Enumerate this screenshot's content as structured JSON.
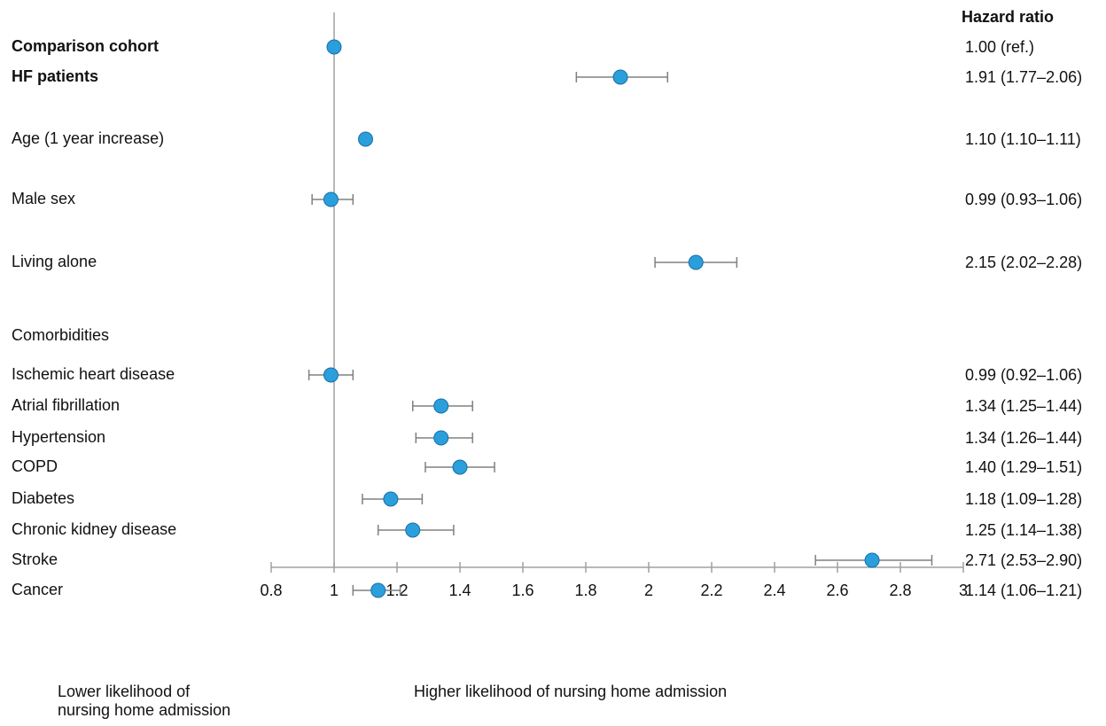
{
  "chart_data": {
    "type": "forest",
    "xlim": [
      0.8,
      3
    ],
    "reference_value": 1,
    "x_ticks": [
      "0.8",
      "1",
      "1.2",
      "1.4",
      "1.6",
      "1.8",
      "2",
      "2.2",
      "2.4",
      "2.6",
      "2.8",
      "3"
    ],
    "hr_column_header": "Hazard ratio",
    "x_caption_left": "Lower likelihood of\nnursing home admission",
    "x_caption_right": "Higher likelihood of nursing home admission",
    "section_label": "Comorbidities",
    "rows": [
      {
        "label": "Comparison cohort",
        "bold": true,
        "hr": 1.0,
        "lo": null,
        "hi": null,
        "text": "1.00 (ref.)"
      },
      {
        "label": "HF patients",
        "bold": true,
        "hr": 1.91,
        "lo": 1.77,
        "hi": 2.06,
        "text": "1.91 (1.77–2.06)"
      },
      {
        "label": "Age (1 year increase)",
        "bold": false,
        "hr": 1.1,
        "lo": 1.1,
        "hi": 1.11,
        "text": "1.10 (1.10–1.11)"
      },
      {
        "label": "Male sex",
        "bold": false,
        "hr": 0.99,
        "lo": 0.93,
        "hi": 1.06,
        "text": "0.99 (0.93–1.06)"
      },
      {
        "label": "Living alone",
        "bold": false,
        "hr": 2.15,
        "lo": 2.02,
        "hi": 2.28,
        "text": "2.15 (2.02–2.28)"
      },
      {
        "label": "Ischemic heart disease",
        "bold": false,
        "hr": 0.99,
        "lo": 0.92,
        "hi": 1.06,
        "text": "0.99 (0.92–1.06)"
      },
      {
        "label": "Atrial fibrillation",
        "bold": false,
        "hr": 1.34,
        "lo": 1.25,
        "hi": 1.44,
        "text": "1.34 (1.25–1.44)"
      },
      {
        "label": "Hypertension",
        "bold": false,
        "hr": 1.34,
        "lo": 1.26,
        "hi": 1.44,
        "text": "1.34 (1.26–1.44)"
      },
      {
        "label": "COPD",
        "bold": false,
        "hr": 1.4,
        "lo": 1.29,
        "hi": 1.51,
        "text": "1.40 (1.29–1.51)"
      },
      {
        "label": "Diabetes",
        "bold": false,
        "hr": 1.18,
        "lo": 1.09,
        "hi": 1.28,
        "text": "1.18 (1.09–1.28)"
      },
      {
        "label": "Chronic kidney disease",
        "bold": false,
        "hr": 1.25,
        "lo": 1.14,
        "hi": 1.38,
        "text": "1.25 (1.14–1.38)"
      },
      {
        "label": "Stroke",
        "bold": false,
        "hr": 2.71,
        "lo": 2.53,
        "hi": 2.9,
        "text": "2.71 (2.53–2.90)"
      },
      {
        "label": "Cancer",
        "bold": false,
        "hr": 1.14,
        "lo": 1.06,
        "hi": 1.21,
        "text": "1.14 (1.06–1.21)"
      }
    ],
    "colors": {
      "point": "#2a9fdc",
      "point_edge": "#1a6fa8",
      "whisker": "#808080",
      "axis": "#a0a0a0"
    }
  }
}
